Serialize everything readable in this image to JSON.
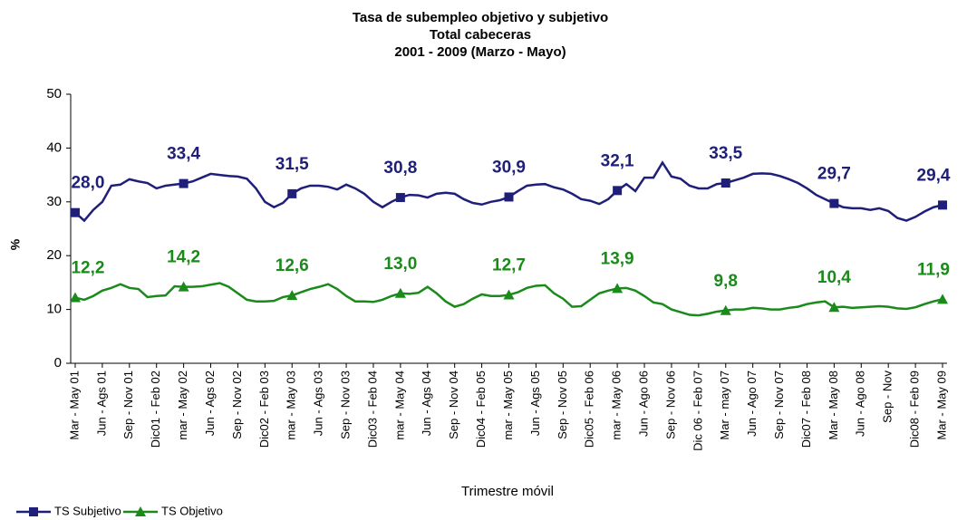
{
  "chart_data": {
    "type": "line",
    "title": [
      "Tasa de subempleo objetivo y subjetivo",
      "Total cabeceras",
      "2001 - 2009 (Marzo - Mayo)"
    ],
    "xlabel": "Trimestre móvil",
    "ylabel": "%",
    "categories": [
      "Mar - May 01",
      null,
      null,
      "Jun - Ags 01",
      null,
      null,
      "Sep - Nov 01",
      null,
      null,
      "Dic01 - Feb 02",
      null,
      null,
      "mar - May 02",
      null,
      null,
      "Jun - Ags 02",
      null,
      null,
      "Sep - Nov 02",
      null,
      null,
      "Dic02 - Feb 03",
      null,
      null,
      "mar - May 03",
      null,
      null,
      "Jun - Ags 03",
      null,
      null,
      "Sep - Nov 03",
      null,
      null,
      "Dic03 - Feb 04",
      null,
      null,
      "mar - May 04",
      null,
      null,
      "Jun - Ags 04",
      null,
      null,
      "Sep - Nov 04",
      null,
      null,
      "Dic04 - Feb 05",
      null,
      null,
      "mar - May 05",
      null,
      null,
      "Jun - Ags 05",
      null,
      null,
      "Sep - Nov 05",
      null,
      null,
      "Dic05 - Feb 06",
      null,
      null,
      "mar - May 06",
      null,
      null,
      "Jun - Ago 06",
      null,
      null,
      "Sep - Nov 06",
      null,
      null,
      "Dic 06 - Feb 07",
      null,
      null,
      "Mar - may 07",
      null,
      null,
      "Jun - Ago 07",
      null,
      null,
      "Sep - Nov 07",
      null,
      null,
      "Dic07 - Feb 08",
      null,
      null,
      "Mar - May 08",
      null,
      null,
      "Jun - Ago 08",
      null,
      null,
      "Sep - Nov",
      null,
      null,
      "Dic08 - Feb 09",
      null,
      null,
      "Mar - May 09"
    ],
    "series": [
      {
        "name": "TS Subjetivo",
        "color": "#1f1f7a",
        "marker": "square",
        "values": [
          28.0,
          26.5,
          28.5,
          30,
          33,
          33.2,
          34.2,
          33.8,
          33.5,
          32.5,
          33.0,
          33.2,
          33.4,
          33.8,
          34.5,
          35.2,
          35.0,
          34.8,
          34.7,
          34.3,
          32.5,
          30.0,
          29.0,
          29.8,
          31.5,
          32.5,
          33.0,
          33.0,
          32.8,
          32.3,
          33.2,
          32.5,
          31.5,
          30.0,
          29.0,
          30.0,
          30.8,
          31.3,
          31.2,
          30.8,
          31.5,
          31.7,
          31.5,
          30.5,
          29.8,
          29.5,
          30.0,
          30.3,
          30.9,
          32.0,
          33.0,
          33.2,
          33.3,
          32.7,
          32.3,
          31.5,
          30.5,
          30.2,
          29.6,
          30.5,
          32.1,
          33.3,
          32.0,
          34.5,
          34.5,
          37.3,
          34.7,
          34.3,
          33.0,
          32.5,
          32.5,
          33.3,
          33.5,
          34.0,
          34.5,
          35.2,
          35.3,
          35.2,
          34.8,
          34.2,
          33.5,
          32.5,
          31.3,
          30.5,
          29.7,
          29.0,
          28.8,
          28.8,
          28.5,
          28.8,
          28.3,
          27.0,
          26.5,
          27.2,
          28.2,
          29.0,
          29.4
        ],
        "value_labels": [
          "28,0",
          null,
          null,
          null,
          null,
          null,
          null,
          null,
          null,
          null,
          null,
          null,
          "33,4",
          null,
          null,
          null,
          null,
          null,
          null,
          null,
          null,
          null,
          null,
          null,
          "31,5",
          null,
          null,
          null,
          null,
          null,
          null,
          null,
          null,
          null,
          null,
          null,
          "30,8",
          null,
          null,
          null,
          null,
          null,
          null,
          null,
          null,
          null,
          null,
          null,
          "30,9",
          null,
          null,
          null,
          null,
          null,
          null,
          null,
          null,
          null,
          null,
          null,
          "32,1",
          null,
          null,
          null,
          null,
          null,
          null,
          null,
          null,
          null,
          null,
          null,
          "33,5",
          null,
          null,
          null,
          null,
          null,
          null,
          null,
          null,
          null,
          null,
          null,
          "29,7",
          null,
          null,
          null,
          null,
          null,
          null,
          null,
          null,
          null,
          null,
          null,
          "29,4"
        ]
      },
      {
        "name": "TS Objetivo",
        "color": "#1a8a1a",
        "marker": "triangle",
        "values": [
          12.2,
          11.8,
          12.5,
          13.5,
          14.0,
          14.7,
          14.0,
          13.8,
          12.3,
          12.5,
          12.6,
          14.3,
          14.2,
          14.2,
          14.3,
          14.6,
          14.9,
          14.2,
          13.0,
          11.8,
          11.5,
          11.5,
          11.6,
          12.3,
          12.6,
          13.2,
          13.8,
          14.2,
          14.7,
          13.8,
          12.5,
          11.5,
          11.5,
          11.4,
          11.8,
          12.5,
          13.0,
          12.9,
          13.1,
          14.2,
          13.0,
          11.5,
          10.5,
          11.0,
          12.0,
          12.8,
          12.5,
          12.5,
          12.7,
          13.2,
          14.0,
          14.4,
          14.5,
          13.0,
          12.0,
          10.5,
          10.6,
          11.8,
          13.0,
          13.5,
          13.9,
          14.0,
          13.5,
          12.5,
          11.3,
          11.0,
          10.0,
          9.5,
          9.0,
          8.9,
          9.2,
          9.6,
          9.8,
          10.0,
          10.0,
          10.3,
          10.2,
          10.0,
          10.0,
          10.3,
          10.5,
          11.0,
          11.3,
          11.5,
          10.4,
          10.5,
          10.3,
          10.4,
          10.5,
          10.6,
          10.5,
          10.2,
          10.1,
          10.4,
          11.0,
          11.5,
          11.9
        ],
        "value_labels": [
          "12,2",
          null,
          null,
          null,
          null,
          null,
          null,
          null,
          null,
          null,
          null,
          null,
          "14,2",
          null,
          null,
          null,
          null,
          null,
          null,
          null,
          null,
          null,
          null,
          null,
          "12,6",
          null,
          null,
          null,
          null,
          null,
          null,
          null,
          null,
          null,
          null,
          null,
          "13,0",
          null,
          null,
          null,
          null,
          null,
          null,
          null,
          null,
          null,
          null,
          null,
          "12,7",
          null,
          null,
          null,
          null,
          null,
          null,
          null,
          null,
          null,
          null,
          null,
          "13,9",
          null,
          null,
          null,
          null,
          null,
          null,
          null,
          null,
          null,
          null,
          null,
          "9,8",
          null,
          null,
          null,
          null,
          null,
          null,
          null,
          null,
          null,
          null,
          null,
          "10,4",
          null,
          null,
          null,
          null,
          null,
          null,
          null,
          null,
          null,
          null,
          null,
          "11,9"
        ]
      }
    ],
    "ylim": [
      0,
      50
    ],
    "yticks": [
      0,
      10,
      20,
      30,
      40,
      50
    ],
    "grid": false,
    "legend": "bottom-left"
  }
}
